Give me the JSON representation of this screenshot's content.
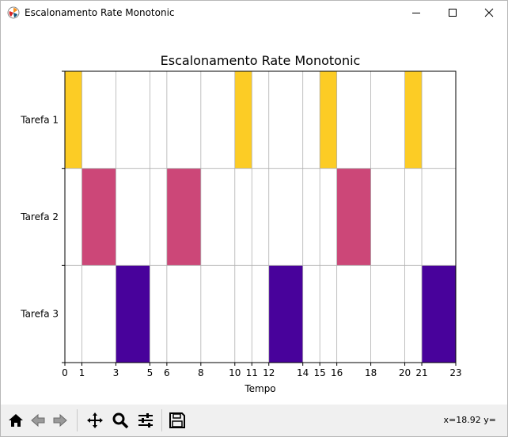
{
  "window": {
    "title": "Escalonamento Rate Monotonic"
  },
  "toolbar": {
    "buttons": [
      {
        "name": "home-icon"
      },
      {
        "name": "back-icon"
      },
      {
        "name": "forward-icon"
      },
      {
        "name": "pan-icon"
      },
      {
        "name": "zoom-icon"
      },
      {
        "name": "configure-subplots-icon"
      },
      {
        "name": "save-icon"
      }
    ],
    "coords": "x=18.92 y="
  },
  "colors": {
    "tarefa1": "#fccc25",
    "tarefa2": "#cc4778",
    "tarefa3": "#48029b"
  },
  "chart_data": {
    "type": "bar",
    "title": "Escalonamento Rate Monotonic",
    "xlabel": "Tempo",
    "ylabel": "",
    "xlim": [
      0,
      23
    ],
    "xticks": [
      0,
      1,
      3,
      5,
      6,
      8,
      10,
      11,
      12,
      14,
      15,
      16,
      18,
      20,
      21,
      23
    ],
    "categories": [
      "Tarefa 1",
      "Tarefa 2",
      "Tarefa 3"
    ],
    "grid": true,
    "series": [
      {
        "name": "Tarefa 1",
        "color": "#fccc25",
        "intervals": [
          [
            0,
            1
          ],
          [
            10,
            11
          ],
          [
            15,
            16
          ],
          [
            20,
            21
          ]
        ]
      },
      {
        "name": "Tarefa 2",
        "color": "#cc4778",
        "intervals": [
          [
            1,
            3
          ],
          [
            6,
            8
          ],
          [
            16,
            18
          ]
        ]
      },
      {
        "name": "Tarefa 3",
        "color": "#48029b",
        "intervals": [
          [
            3,
            5
          ],
          [
            12,
            14
          ],
          [
            21,
            23
          ]
        ]
      }
    ]
  }
}
